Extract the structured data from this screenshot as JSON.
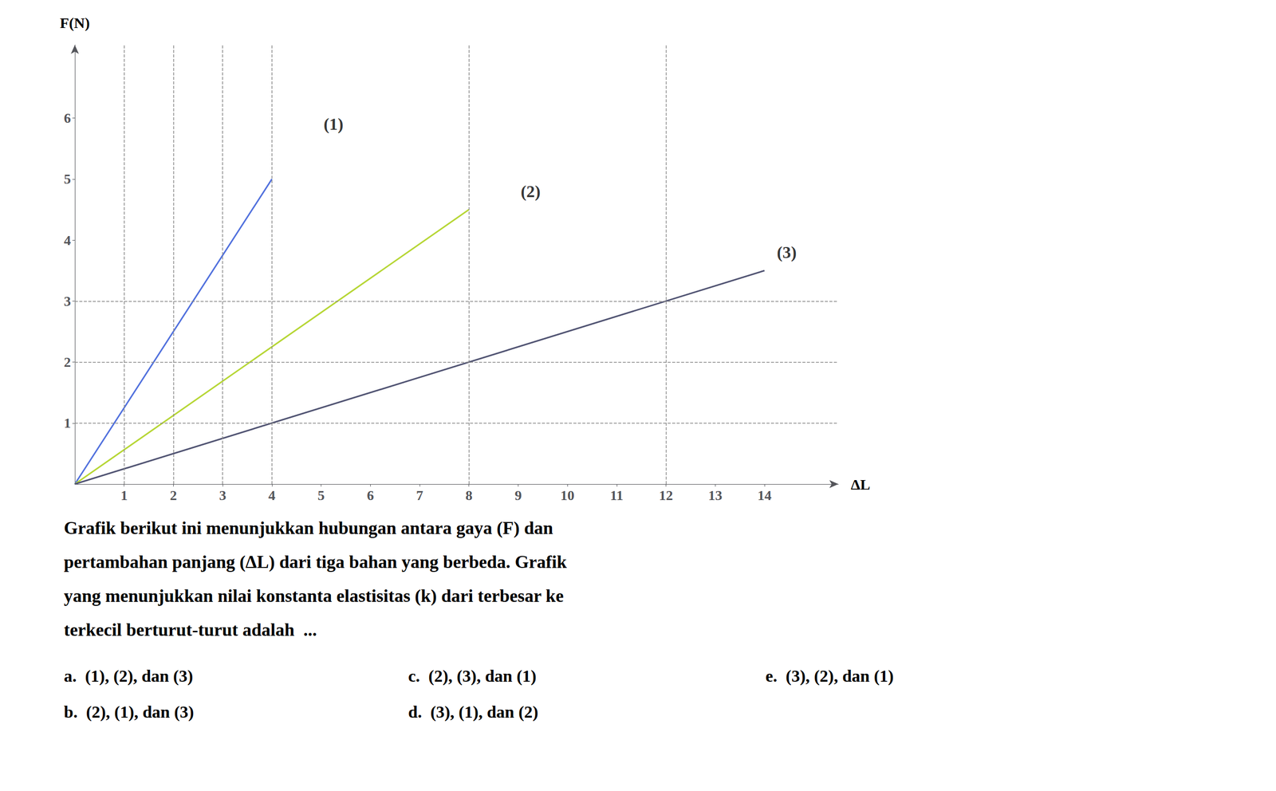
{
  "chart_data": {
    "type": "line",
    "xlabel": "ΔL",
    "ylabel": "F(N)",
    "xlim": [
      0,
      15.5
    ],
    "ylim": [
      0,
      7.2
    ],
    "xticks": [
      1,
      2,
      3,
      4,
      5,
      6,
      7,
      8,
      9,
      10,
      11,
      12,
      13,
      14
    ],
    "yticks": [
      1,
      2,
      3,
      4,
      5,
      6
    ],
    "grid": false,
    "series": [
      {
        "x": [
          0,
          4
        ],
        "values": [
          0,
          5
        ]
      },
      {
        "x": [
          0,
          8
        ],
        "values": [
          0,
          4.5
        ]
      },
      {
        "x": [
          0,
          14
        ],
        "values": [
          0,
          3.5
        ]
      }
    ],
    "annotations": [
      {
        "text": "(1)",
        "x": 5.0,
        "y": 5.9
      },
      {
        "text": "(2)",
        "x": 9.0,
        "y": 4.8
      },
      {
        "text": "(3)",
        "x": 14.2,
        "y": 3.8
      }
    ],
    "hlines": [
      1,
      2,
      3
    ],
    "vlines": [
      1,
      2,
      3,
      4,
      8,
      12
    ],
    "paragraph": [
      "Grafik berikut ini menunjukkan hubungan antara gaya (F) dan",
      "pertambahan panjang (ΔL) dari tiga bahan yang berbeda. Grafik",
      "yang menunjukkan nilai konstanta elastisitas (k) dari terbesar ke",
      "terkecil berturut-turut adalah  ..."
    ],
    "answers": [
      "a.  (1), (2), dan (3)",
      "b.  (2), (1), dan (3)",
      "c.  (2), (3), dan (1)",
      "d.  (3), (1), dan (2)",
      "e.  (3), (2), dan (1)"
    ]
  }
}
